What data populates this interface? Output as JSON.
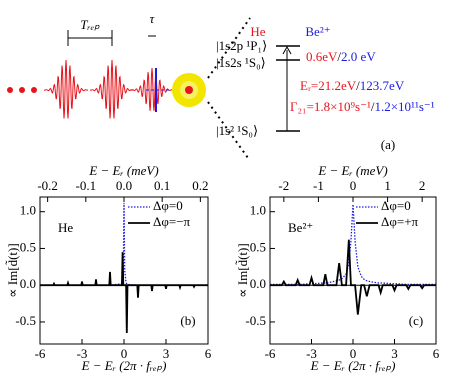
{
  "diagram": {
    "period_label": "Tᵣₑₚ",
    "delay_label": "τ",
    "atom_he": "He",
    "atom_be": "Be²⁺",
    "level_upper": "|1s2p ¹P₁⟩",
    "level_middle": "|1s2s ¹S₀⟩",
    "level_ground": "|1s² ¹S₀⟩",
    "split_he": "0.6eV",
    "split_sep": "/",
    "split_be": "2.0 eV",
    "energy_he": "Eᵣ=21.2eV",
    "energy_sep": "/",
    "energy_be": "123.7eV",
    "rate_he": "Γ₂₁=1.8×10⁹s⁻¹",
    "rate_sep": "/",
    "rate_be": "1.2×10¹¹s⁻¹",
    "panel_label": "(a)"
  },
  "chart_data": [
    {
      "type": "line",
      "panel_label": "(b)",
      "annotation": "He",
      "xlabel": "E − Eᵣ (2π · fᵣₑₚ)",
      "x2label": "E − Eᵣ (meV)",
      "ylabel": "∝ Im[d̃(t)]",
      "xlim": [
        -6,
        6
      ],
      "xticks": [
        -6,
        -3,
        0,
        3,
        6
      ],
      "x2lim": [
        -0.22,
        0.22
      ],
      "x2ticks": [
        -0.2,
        -0.1,
        {
          "value": 0,
          "label": "0.0"
        },
        0.1,
        0.2
      ],
      "ylim": [
        -0.8,
        1.2
      ],
      "yticks": [
        -0.5,
        {
          "value": 0,
          "label": "0.0"
        },
        0.5,
        {
          "value": 1,
          "label": "1.0"
        }
      ],
      "legend": "upper right",
      "x": [
        -6,
        -5.05,
        -5,
        -4.95,
        -4.05,
        -4,
        -3.95,
        -3.05,
        -3,
        -2.95,
        -2.05,
        -2,
        -1.95,
        -1.05,
        -1,
        -0.95,
        -0.15,
        -0.1,
        -0.05,
        0,
        0.05,
        0.15,
        0.2,
        0.25,
        0.95,
        1,
        1.05,
        1.95,
        2,
        2.05,
        2.95,
        3,
        3.05,
        3.95,
        4,
        4.05,
        4.95,
        5,
        5.05,
        6
      ],
      "series": [
        {
          "name": "Δφ=0",
          "color": "#1c1ce0",
          "dash": "dotted",
          "values": [
            0,
            0,
            0,
            0,
            0,
            0,
            0,
            0,
            0,
            0,
            0,
            0,
            0,
            0,
            0,
            0,
            0.02,
            0.05,
            0.2,
            1.12,
            0.2,
            0.03,
            0.02,
            0.01,
            0,
            0,
            0,
            0,
            0,
            0,
            0,
            0,
            0,
            0,
            0,
            0,
            0,
            0,
            0,
            0
          ]
        },
        {
          "name": "Δφ=−π",
          "color": "#000000",
          "dash": "solid",
          "values": [
            0,
            0,
            0.02,
            0,
            0,
            0.03,
            0,
            0,
            0.05,
            0,
            0,
            0.08,
            0,
            0,
            0.18,
            0,
            0,
            0.45,
            0,
            0,
            0,
            0,
            -0.65,
            0,
            0,
            -0.17,
            0,
            0,
            -0.08,
            0,
            0,
            -0.05,
            0,
            0,
            -0.03,
            0,
            0,
            -0.02,
            0,
            0
          ]
        }
      ]
    },
    {
      "type": "line",
      "panel_label": "(c)",
      "annotation": "Be²⁺",
      "xlabel": "E − Eᵣ (2π · fᵣₑₚ)",
      "x2label": "E − Eᵣ (meV)",
      "ylabel": "∝ Im[d̃(t)]",
      "xlim": [
        -6,
        6
      ],
      "xticks": [
        -6,
        -3,
        0,
        3,
        6
      ],
      "x2lim": [
        -2.4,
        2.4
      ],
      "x2ticks": [
        -2,
        -1,
        0,
        1,
        2
      ],
      "ylim": [
        -0.8,
        1.2
      ],
      "yticks": [
        -0.5,
        {
          "value": 0,
          "label": "0.0"
        },
        0.5,
        {
          "value": 1,
          "label": "1.0"
        }
      ],
      "legend": "upper right",
      "x": [
        -6,
        -5.15,
        -5,
        -4.85,
        -4.15,
        -4,
        -3.85,
        -3.15,
        -3,
        -2.85,
        -2.15,
        -2,
        -1.85,
        -1.2,
        -1,
        -0.8,
        -0.5,
        -0.3,
        -0.15,
        0,
        0.15,
        0.35,
        0.6,
        0.8,
        1,
        1.2,
        1.85,
        2,
        2.15,
        2.85,
        3,
        3.15,
        3.85,
        4,
        4.15,
        4.85,
        5,
        5.15,
        6
      ],
      "series": [
        {
          "name": "Δφ=0",
          "color": "#1c1ce0",
          "dash": "dotted",
          "values": [
            0.01,
            0.01,
            0.01,
            0.01,
            0.01,
            0.01,
            0.01,
            0.02,
            0.02,
            0.02,
            0.03,
            0.03,
            0.03,
            0.06,
            0.07,
            0.09,
            0.15,
            0.3,
            0.6,
            1.1,
            0.6,
            0.25,
            0.12,
            0.08,
            0.06,
            0.05,
            0.03,
            0.03,
            0.03,
            0.02,
            0.02,
            0.02,
            0.01,
            0.01,
            0.01,
            0.01,
            0.01,
            0.01,
            0.01
          ]
        },
        {
          "name": "Δφ=+π",
          "color": "#000000",
          "dash": "solid",
          "values": [
            0,
            0,
            0.05,
            0,
            0,
            0.07,
            0,
            0,
            0.1,
            0,
            0,
            0.15,
            0,
            0,
            0.3,
            0,
            0,
            0.62,
            0,
            0,
            0,
            -0.4,
            0,
            0,
            -0.15,
            0,
            0,
            -0.1,
            0,
            0,
            -0.07,
            0,
            0,
            -0.05,
            0,
            0,
            -0.04,
            0,
            0
          ]
        }
      ]
    }
  ]
}
